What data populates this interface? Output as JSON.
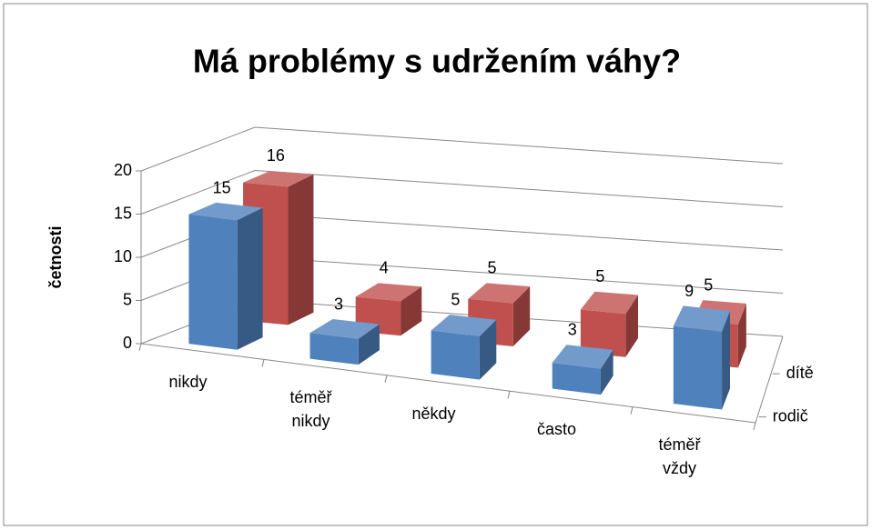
{
  "chart_data": {
    "type": "bar3d",
    "title": "Má problémy s udržením váhy?",
    "y_label": "četnosti",
    "categories": [
      "nikdy",
      "téměř nikdy",
      "někdy",
      "často",
      "téměř vždy"
    ],
    "series": [
      {
        "name": "rodič",
        "color": "#4f81bd",
        "values": [
          15,
          3,
          5,
          3,
          9
        ]
      },
      {
        "name": "dítě",
        "color": "#c0504d",
        "values": [
          16,
          4,
          5,
          5,
          5
        ]
      }
    ],
    "ylim": [
      0,
      20
    ],
    "yticks": [
      0,
      5,
      10,
      15,
      20
    ],
    "grid": true
  }
}
